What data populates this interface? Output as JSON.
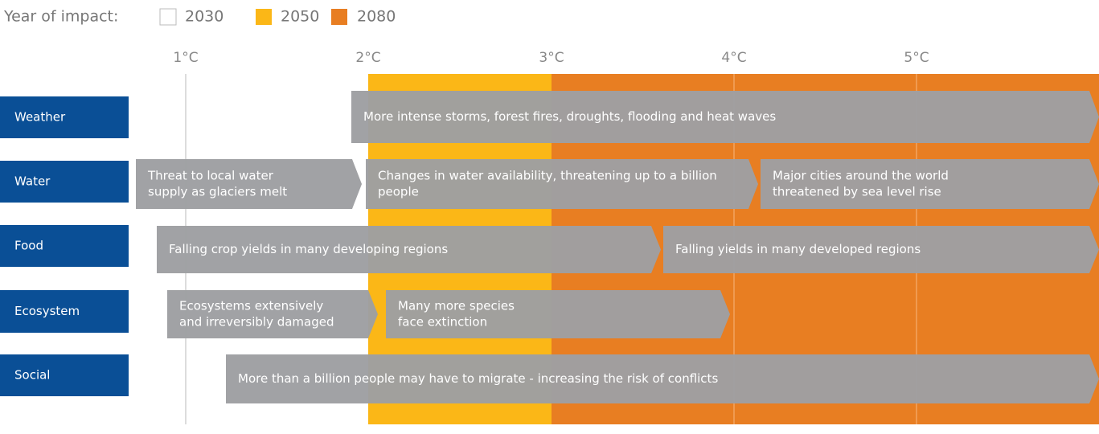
{
  "legend": {
    "title": "Year of impact:",
    "items": [
      {
        "label": "2030"
      },
      {
        "label": "2050"
      },
      {
        "label": "2080"
      }
    ]
  },
  "axis": {
    "labels": [
      "1°C",
      "2°C",
      "3°C",
      "4°C",
      "5°C"
    ]
  },
  "rows": [
    {
      "label": "Weather",
      "arrows": [
        {
          "lines": [
            "More intense storms, forest fires, droughts, flooding and heat waves"
          ]
        }
      ]
    },
    {
      "label": "Water",
      "arrows": [
        {
          "lines": [
            "Threat to local water",
            "supply as glaciers melt"
          ]
        },
        {
          "lines": [
            "Changes in water availability, threatening up to a billion",
            "people"
          ]
        },
        {
          "lines": [
            "Major cities around the world",
            "threatened by sea level rise"
          ]
        }
      ]
    },
    {
      "label": "Food",
      "arrows": [
        {
          "lines": [
            "Falling crop yields in many developing regions"
          ]
        },
        {
          "lines": [
            "Falling yields in many developed regions"
          ]
        }
      ]
    },
    {
      "label": "Ecosystem",
      "arrows": [
        {
          "lines": [
            "Ecosystems extensively",
            "and irreversibly damaged"
          ]
        },
        {
          "lines": [
            "Many more species",
            "face extinction"
          ]
        }
      ]
    },
    {
      "label": "Social",
      "arrows": [
        {
          "lines": [
            "More than a billion people may have to migrate - increasing the risk of conflicts"
          ]
        }
      ]
    }
  ]
}
